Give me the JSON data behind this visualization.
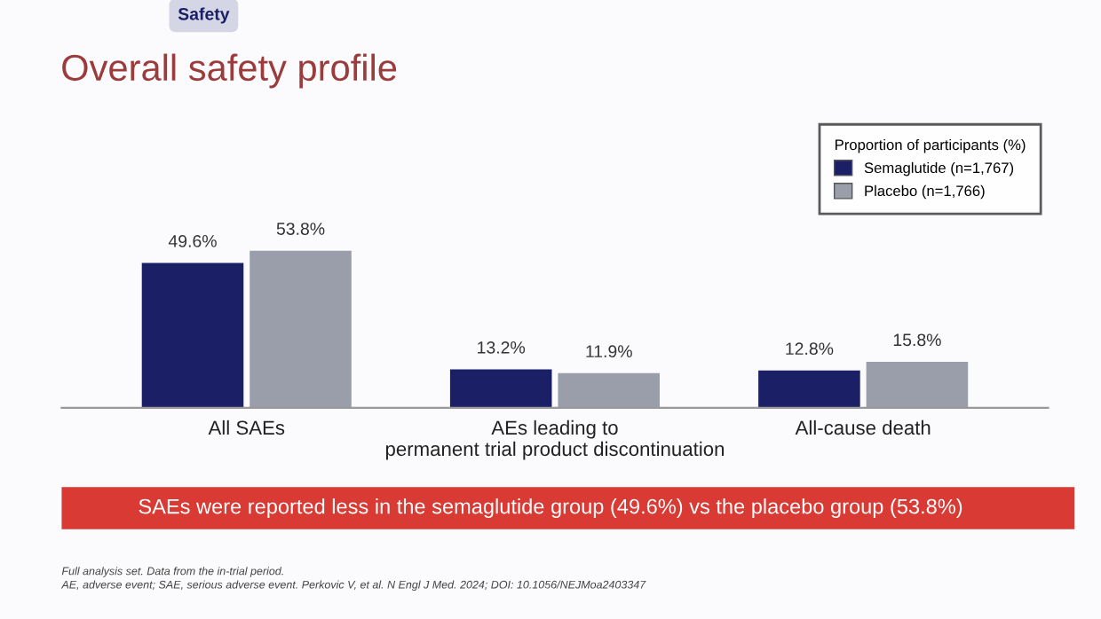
{
  "chart_data": {
    "type": "bar",
    "title": "Overall safety profile",
    "legend_title": "Proportion of participants (%)",
    "categories": [
      "All SAEs",
      "AEs leading to\npermanent trial product discontinuation",
      "All-cause death"
    ],
    "series": [
      {
        "name": "Semaglutide (n=1,767)",
        "color": "#1b1f66",
        "values": [
          49.6,
          13.2,
          12.8
        ],
        "value_labels": [
          "49.6%",
          "13.2%",
          "12.8%"
        ]
      },
      {
        "name": "Placebo (n=1,766)",
        "color": "#9a9eab",
        "values": [
          53.8,
          11.9,
          15.8
        ],
        "value_labels": [
          "53.8%",
          "11.9%",
          "15.8%"
        ]
      }
    ],
    "legend": "top right",
    "grid": false,
    "annotations": [
      "Safety",
      "SAEs were reported less in the semaglutide group (49.6%) vs the placebo group (53.8%)",
      "Full analysis set. Data from the in-trial period.\nAE, adverse event; SAE, serious adverse event. Perkovic V, et al. N Engl J Med. 2024; DOI: 10.1056/NEJMoa2403347"
    ]
  }
}
